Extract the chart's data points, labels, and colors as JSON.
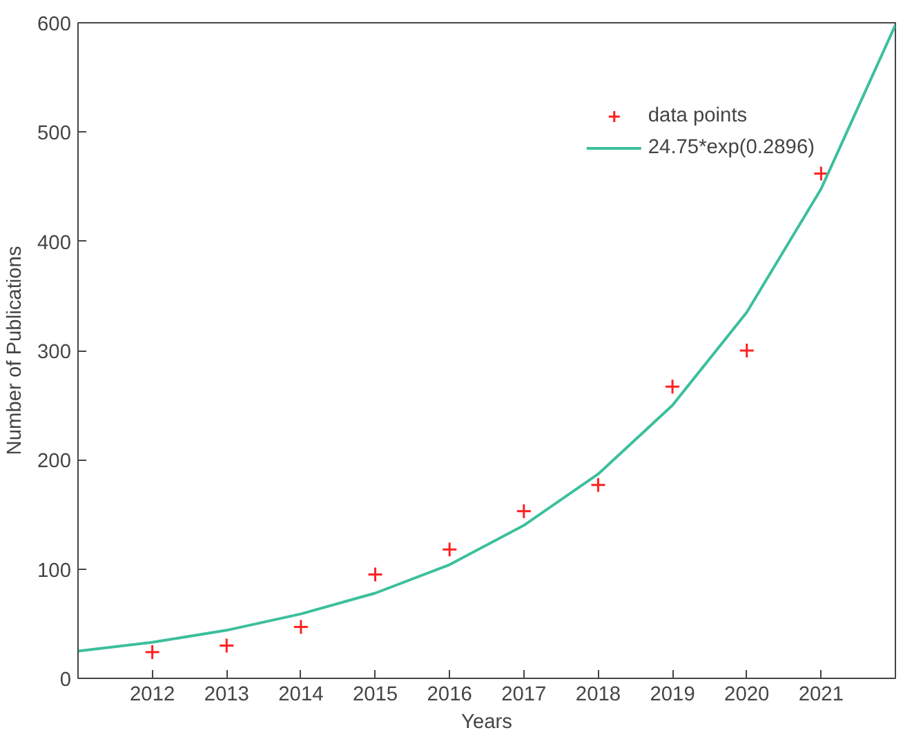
{
  "chart_data": {
    "type": "scatter",
    "xlabel": "Years",
    "ylabel": "Number of Publications",
    "xlim": [
      2011,
      2022
    ],
    "xticks": [
      2012,
      2013,
      2014,
      2015,
      2016,
      2017,
      2018,
      2019,
      2020,
      2021
    ],
    "ylim": [
      0,
      600
    ],
    "yticks": [
      0,
      100,
      200,
      300,
      400,
      500,
      600
    ],
    "grid": false,
    "legend": "top right",
    "series": [
      {
        "name": "data points",
        "marker": "cross",
        "color": "#ff2020",
        "x": [
          2012,
          2013,
          2014,
          2015,
          2016,
          2017,
          2018,
          2019,
          2020,
          2021
        ],
        "values": [
          24,
          30,
          47,
          95,
          118,
          153,
          177,
          267,
          300,
          462
        ]
      },
      {
        "name": "24.75*exp(0.2896)",
        "type": "line",
        "marker": "none",
        "line_style": "solid",
        "color": "#3cbf9c",
        "x": [
          2011,
          2012,
          2013,
          2014,
          2015,
          2016,
          2017,
          2018,
          2019,
          2020,
          2021,
          2022
        ],
        "values": [
          25,
          33,
          44,
          59,
          78,
          104,
          140,
          187,
          250,
          335,
          448,
          598
        ]
      }
    ]
  }
}
